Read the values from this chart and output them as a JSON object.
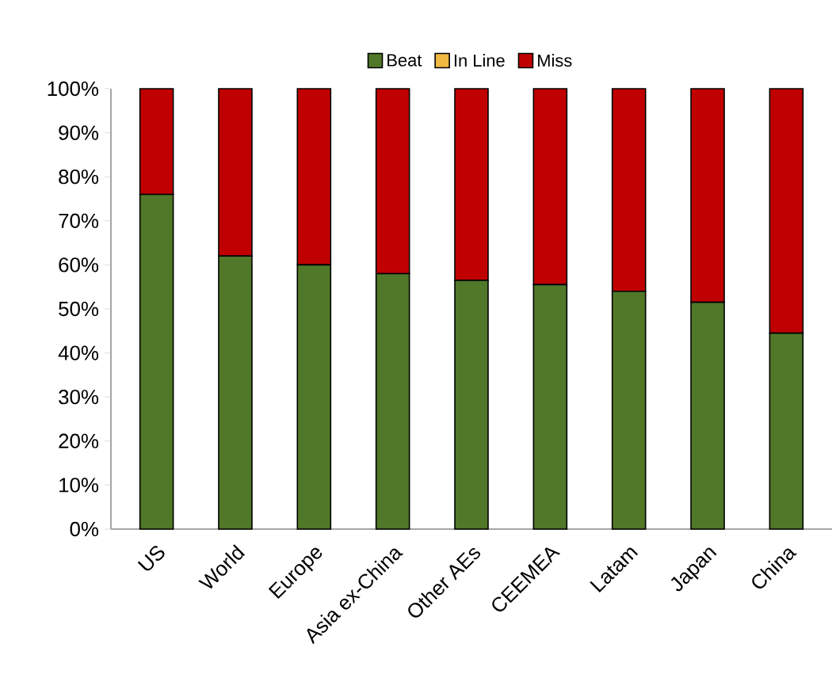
{
  "chart_data": {
    "type": "bar",
    "stacked": true,
    "categories": [
      "US",
      "World",
      "Europe",
      "Asia ex-China",
      "Other AEs",
      "CEEMEA",
      "Latam",
      "Japan",
      "China"
    ],
    "series": [
      {
        "name": "Beat",
        "color": "#507828",
        "values": [
          76,
          62,
          60,
          58,
          56.5,
          55.5,
          54,
          51.5,
          44.5
        ]
      },
      {
        "name": "In Line",
        "color": "#f0b840",
        "values": [
          0,
          0,
          0,
          0,
          0,
          0,
          0,
          0,
          0
        ]
      },
      {
        "name": "Miss",
        "color": "#c00000",
        "values": [
          24,
          38,
          40,
          42,
          43.5,
          44.5,
          46,
          48.5,
          55.5
        ]
      }
    ],
    "ylim": [
      0,
      100
    ],
    "yticks": [
      {
        "value": 0,
        "label": "0%"
      },
      {
        "value": 10,
        "label": "10%"
      },
      {
        "value": 20,
        "label": "20%"
      },
      {
        "value": 30,
        "label": "30%"
      },
      {
        "value": 40,
        "label": "40%"
      },
      {
        "value": 50,
        "label": "50%"
      },
      {
        "value": 60,
        "label": "60%"
      },
      {
        "value": 70,
        "label": "70%"
      },
      {
        "value": 80,
        "label": "80%"
      },
      {
        "value": 90,
        "label": "90%"
      },
      {
        "value": 100,
        "label": "100%"
      }
    ],
    "grid": false,
    "legend": "top"
  }
}
